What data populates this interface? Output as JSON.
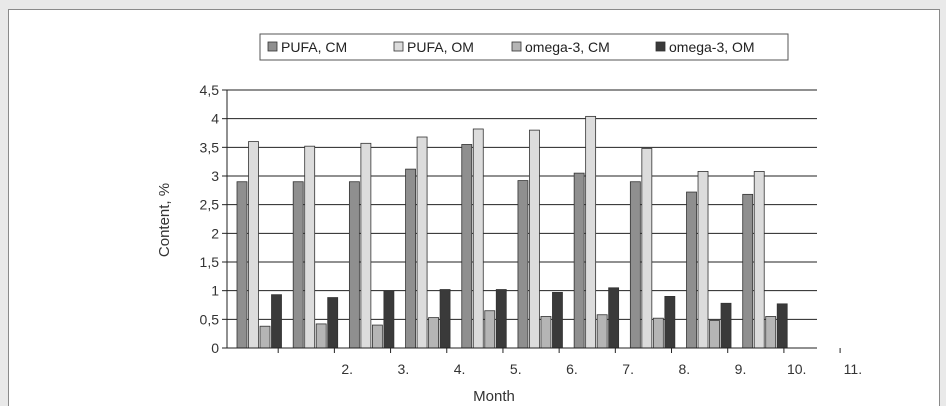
{
  "chart_data": {
    "type": "bar",
    "xlabel": "Month",
    "ylabel": "Content, %",
    "ylim": [
      0,
      4.5
    ],
    "yticks": [
      "0",
      "0,5",
      "1",
      "1,5",
      "2",
      "2,5",
      "3",
      "3,5",
      "4",
      "4,5"
    ],
    "categories": [
      "",
      "2.",
      "3.",
      "4.",
      "5.",
      "6.",
      "7.",
      "8.",
      "9.",
      "10.",
      "11."
    ],
    "legend_position": "top",
    "grid": true,
    "series": [
      {
        "name": "PUFA, CM",
        "color": "#8f8f8f",
        "values": [
          2.9,
          2.9,
          2.9,
          3.12,
          3.55,
          2.92,
          3.05,
          2.9,
          2.72,
          2.68,
          null
        ]
      },
      {
        "name": "PUFA, OM",
        "color": "#dcdcdc",
        "values": [
          3.6,
          3.52,
          3.57,
          3.68,
          3.82,
          3.8,
          4.04,
          3.48,
          3.08,
          3.08,
          null
        ]
      },
      {
        "name": "omega-3, CM",
        "color": "#b5b5b5",
        "values": [
          0.38,
          0.42,
          0.4,
          0.53,
          0.65,
          0.55,
          0.58,
          0.52,
          0.48,
          0.55,
          null
        ]
      },
      {
        "name": "omega-3, OM",
        "color": "#3a3a3a",
        "values": [
          0.93,
          0.88,
          1.0,
          1.02,
          1.02,
          0.97,
          1.05,
          0.9,
          0.78,
          0.77,
          null
        ]
      }
    ]
  }
}
